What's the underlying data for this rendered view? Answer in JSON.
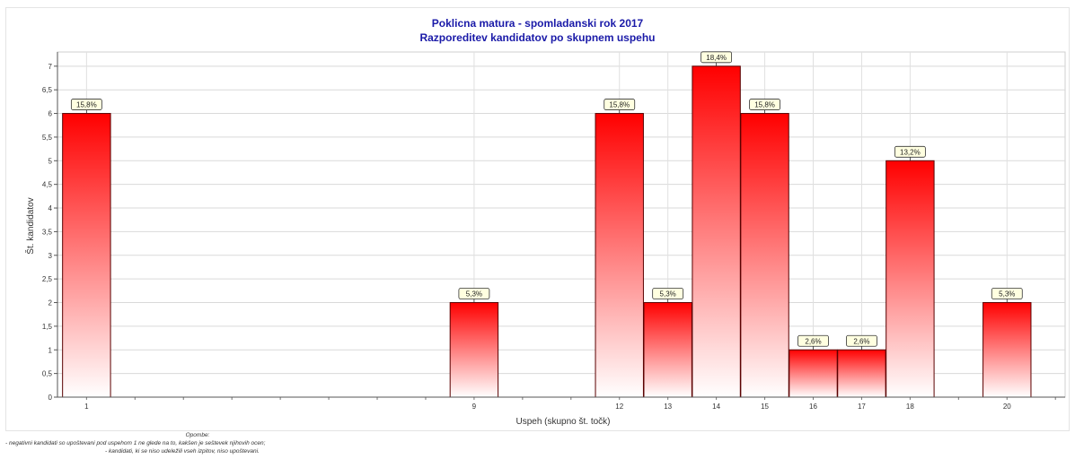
{
  "chart_data": {
    "type": "bar",
    "title": "Poklicna matura - spomladanski rok 2017",
    "subtitle": "Razporeditev kandidatov po skupnem uspehu",
    "xlabel": "Uspeh (skupno št. točk)",
    "ylabel": "Št. kandidatov",
    "categories": [
      "1",
      "9",
      "12",
      "13",
      "14",
      "15",
      "16",
      "17",
      "18",
      "20"
    ],
    "x": [
      1,
      9,
      12,
      13,
      14,
      15,
      16,
      17,
      18,
      20
    ],
    "values": [
      6,
      2,
      6,
      2,
      7,
      6,
      1,
      1,
      5,
      2
    ],
    "data_labels": [
      "15,8%",
      "5,3%",
      "15,8%",
      "5,3%",
      "18,4%",
      "15,8%",
      "2,6%",
      "2,6%",
      "13,2%",
      "5,3%"
    ],
    "xlim": [
      0.4,
      21.2
    ],
    "ylim": [
      0,
      7.3
    ],
    "yticks": [
      "0",
      "0,5",
      "1",
      "1,5",
      "2",
      "2,5",
      "3",
      "3,5",
      "4",
      "4,5",
      "5",
      "5,5",
      "6",
      "6,5",
      "7"
    ],
    "grid": true,
    "bar_gradient": [
      "#ff0000",
      "#ffffff"
    ]
  },
  "notes": {
    "heading": "Opombe:",
    "line1": "- negativni kandidati so upoštevani pod uspehom 1 ne glede na to, kakšen je seštevek njihovih ocen;",
    "line2": "- kandidati, ki se niso udeležili vseh izpitov, niso upoštevani."
  },
  "colors": {
    "title": "#1a1aa8",
    "bar_top": "#ff0000",
    "bar_bottom": "#ffffff",
    "label_bg": "#ffffe0"
  }
}
